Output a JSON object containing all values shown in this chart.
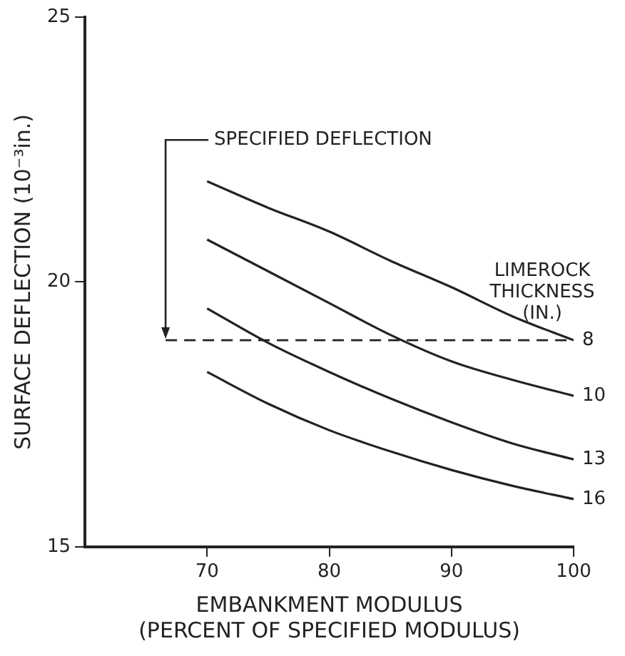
{
  "chart_data": {
    "type": "line",
    "xlabel": "EMBANKMENT MODULUS\n(PERCENT OF SPECIFIED MODULUS)",
    "ylabel": "SURFACE DEFLECTION (10⁻³in.)",
    "legend_title": "LIMEROCK\nTHICKNESS\n(IN.)",
    "x": [
      70,
      75,
      80,
      85,
      90,
      95,
      100
    ],
    "xlim": [
      60,
      100
    ],
    "xticks": [
      70,
      80,
      90,
      100
    ],
    "ylim": [
      15,
      25
    ],
    "yticks": [
      15,
      20,
      25
    ],
    "grid": false,
    "legend": false,
    "marker": "none",
    "line_style": "solid",
    "series": [
      {
        "name": "8",
        "color": "#222222",
        "values": [
          21.9,
          21.4,
          20.95,
          20.4,
          19.9,
          19.35,
          18.9
        ]
      },
      {
        "name": "10",
        "color": "#222222",
        "values": [
          20.8,
          20.2,
          19.6,
          19.0,
          18.5,
          18.15,
          17.85
        ]
      },
      {
        "name": "13",
        "color": "#222222",
        "values": [
          19.5,
          18.85,
          18.3,
          17.8,
          17.35,
          16.95,
          16.65
        ]
      },
      {
        "name": "16",
        "color": "#222222",
        "values": [
          18.3,
          17.7,
          17.2,
          16.8,
          16.45,
          16.15,
          15.9
        ]
      }
    ],
    "ref_lines": [
      {
        "axis": "y",
        "value": 18.9,
        "label": "SPECIFIED DEFLECTION",
        "line_style": "dashed",
        "color": "#222222"
      }
    ]
  }
}
